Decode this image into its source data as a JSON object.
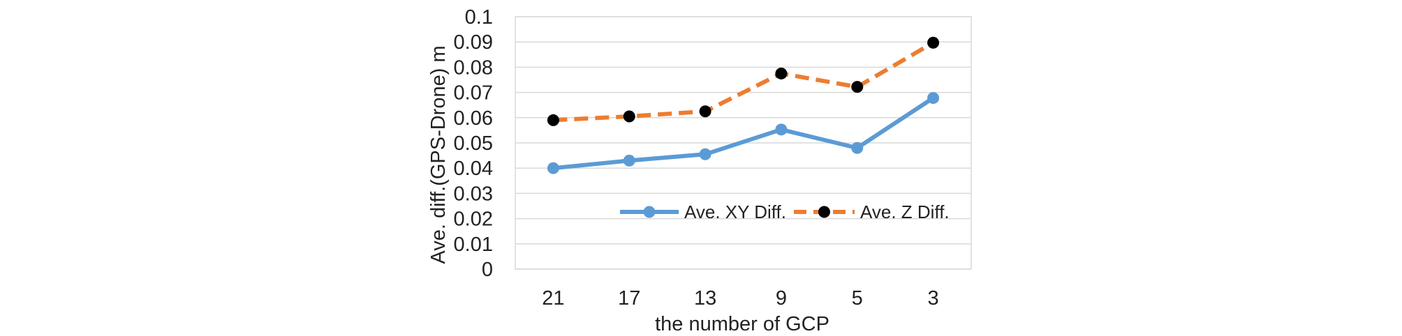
{
  "chart_data": {
    "type": "line",
    "title": "",
    "xlabel": "the number of GCP",
    "ylabel": "Ave. diff.(GPS-Drone) m",
    "categories": [
      "21",
      "17",
      "13",
      "9",
      "5",
      "3"
    ],
    "ylim": [
      0,
      0.1
    ],
    "yticks": [
      "0",
      "0.01",
      "0.02",
      "0.03",
      "0.04",
      "0.05",
      "0.06",
      "0.07",
      "0.08",
      "0.09",
      "0.1"
    ],
    "grid": true,
    "legend_position": "bottom-center (inside plot)",
    "series": [
      {
        "name": "Ave. XY Diff.",
        "values": [
          0.04,
          0.043,
          0.0455,
          0.0553,
          0.048,
          0.0678
        ],
        "color": "#5B9BD5",
        "marker_color": "#5B9BD5",
        "line_style": "solid"
      },
      {
        "name": "Ave. Z Diff.",
        "values": [
          0.059,
          0.0605,
          0.0625,
          0.0775,
          0.0722,
          0.0897
        ],
        "color": "#ED7D31",
        "marker_color": "#000000",
        "line_style": "dashed"
      }
    ]
  }
}
